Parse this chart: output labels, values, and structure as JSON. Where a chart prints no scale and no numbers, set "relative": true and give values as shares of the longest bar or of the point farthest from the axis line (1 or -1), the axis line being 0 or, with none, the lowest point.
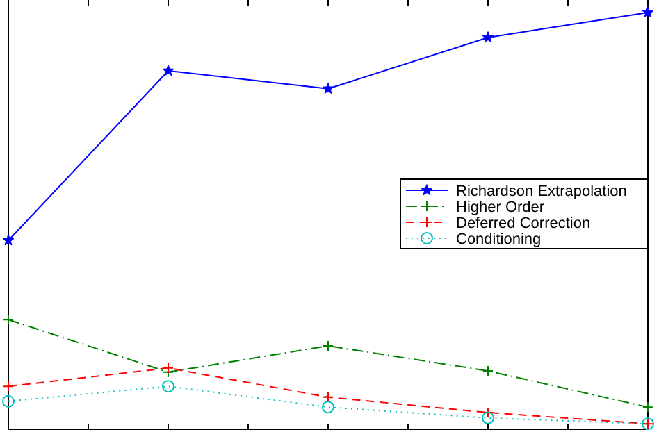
{
  "chart_data": {
    "type": "line",
    "relative": true,
    "categories": [
      null,
      null,
      null,
      null,
      null
    ],
    "legend": "right",
    "grid": false,
    "series": [
      {
        "name": "Richardson Extrapolation",
        "color": "#0000ff",
        "marker": "star",
        "line_style": "solid",
        "values": [
          0.453,
          0.86,
          0.817,
          0.94,
          1
        ]
      },
      {
        "name": "Higher Order",
        "color": "#008000",
        "marker": "cross",
        "line_style": "dashdot",
        "values": [
          0.263,
          0.137,
          0.2,
          0.14,
          0.053
        ]
      },
      {
        "name": "Deferred Correction",
        "color": "#ff0000",
        "marker": "cross",
        "line_style": "dashed",
        "values": [
          0.103,
          0.147,
          0.077,
          0.04,
          0.013
        ]
      },
      {
        "name": "Conditioning",
        "color": "#00bfbf",
        "marker": "circle",
        "line_style": "dotted",
        "values": [
          0.067,
          0.103,
          0.053,
          0.027,
          0.013
        ]
      }
    ]
  }
}
